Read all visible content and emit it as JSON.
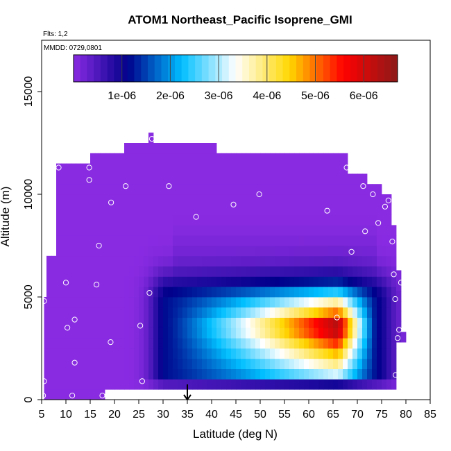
{
  "chart_data": {
    "type": "heatmap",
    "title": "ATOM1 Northeast_Pacific Isoprene_GMI",
    "notes": [
      "Flts: 1,2",
      "MMDD: 0729,0801"
    ],
    "xlabel": "Latitude (deg N)",
    "ylabel": "Altitude (m)",
    "xlim": [
      5,
      85
    ],
    "ylim": [
      0,
      17500
    ],
    "xticks": [
      5,
      10,
      15,
      20,
      25,
      30,
      35,
      40,
      45,
      50,
      55,
      60,
      65,
      70,
      75,
      80,
      85
    ],
    "yticks": [
      0,
      5000,
      10000,
      15000
    ],
    "colorbar": {
      "placement": "top-inside",
      "range": [
        0,
        6.7e-06
      ],
      "ticks": [
        1e-06,
        2e-06,
        3e-06,
        4e-06,
        5e-06,
        6e-06
      ],
      "tick_labels": [
        "1e-06",
        "2e-06",
        "3e-06",
        "4e-06",
        "5e-06",
        "6e-06"
      ],
      "colors": [
        "#8a2be2",
        "#00008b",
        "#00bfff",
        "#ffffff",
        "#ffd700",
        "#ff0000",
        "#8b1a1a"
      ]
    },
    "background_value": 1e-08,
    "coverage_ceiling": [
      {
        "x0": 5.5,
        "x1": 6.5,
        "top": 5000
      },
      {
        "x0": 6.5,
        "x1": 8,
        "top": 7000
      },
      {
        "x0": 8,
        "x1": 15,
        "top": 11500
      },
      {
        "x0": 15,
        "x1": 22,
        "top": 12000
      },
      {
        "x0": 22,
        "x1": 27,
        "top": 12500
      },
      {
        "x0": 27,
        "x1": 28,
        "top": 13000
      },
      {
        "x0": 28,
        "x1": 41,
        "top": 12500
      },
      {
        "x0": 41,
        "x1": 68,
        "top": 12000
      },
      {
        "x0": 68,
        "x1": 72,
        "top": 11000
      },
      {
        "x0": 72,
        "x1": 75,
        "top": 10500
      },
      {
        "x0": 75,
        "x1": 77,
        "top": 10000
      },
      {
        "x0": 77,
        "x1": 78,
        "top": 8500
      },
      {
        "x0": 78,
        "x1": 79,
        "top": 6000
      },
      {
        "x0": 79,
        "x1": 80,
        "top": 3000
      }
    ],
    "coverage_floor": [
      {
        "x0": 5.5,
        "x1": 18,
        "bottom": 0
      },
      {
        "x0": 18,
        "x1": 78.5,
        "bottom": 500
      },
      {
        "x0": 78.5,
        "x1": 80,
        "bottom": 2800
      }
    ],
    "plume": {
      "peak_value": 6.7e-06,
      "peak_lat": 66,
      "peak_alt": 3600,
      "core_lat_range": [
        31,
        73
      ],
      "core_alt_range": [
        1200,
        4800
      ]
    },
    "flight_points": [
      {
        "lat": 5.5,
        "alt": 4800
      },
      {
        "lat": 5.5,
        "alt": 900
      },
      {
        "lat": 5.3,
        "alt": 200
      },
      {
        "lat": 8.5,
        "alt": 11300
      },
      {
        "lat": 10,
        "alt": 5700
      },
      {
        "lat": 10.3,
        "alt": 3500
      },
      {
        "lat": 11.3,
        "alt": 200
      },
      {
        "lat": 11.8,
        "alt": 3900
      },
      {
        "lat": 11.8,
        "alt": 1800
      },
      {
        "lat": 14.8,
        "alt": 11300
      },
      {
        "lat": 14.8,
        "alt": 10700
      },
      {
        "lat": 16.3,
        "alt": 5600
      },
      {
        "lat": 16.8,
        "alt": 7500
      },
      {
        "lat": 17.5,
        "alt": 200
      },
      {
        "lat": 18.5,
        "alt": 200
      },
      {
        "lat": 19.3,
        "alt": 9600
      },
      {
        "lat": 19.2,
        "alt": 2800
      },
      {
        "lat": 22.3,
        "alt": 10400
      },
      {
        "lat": 25.3,
        "alt": 3600
      },
      {
        "lat": 25.7,
        "alt": 900
      },
      {
        "lat": 27.2,
        "alt": 5200
      },
      {
        "lat": 27.7,
        "alt": 12700
      },
      {
        "lat": 31.2,
        "alt": 10400
      },
      {
        "lat": 36.8,
        "alt": 8900
      },
      {
        "lat": 44.5,
        "alt": 9500
      },
      {
        "lat": 49.8,
        "alt": 10000
      },
      {
        "lat": 63.8,
        "alt": 9200
      },
      {
        "lat": 65.8,
        "alt": 4000
      },
      {
        "lat": 67.8,
        "alt": 11300
      },
      {
        "lat": 68.8,
        "alt": 7200
      },
      {
        "lat": 71.2,
        "alt": 10400
      },
      {
        "lat": 71.6,
        "alt": 8200
      },
      {
        "lat": 73.2,
        "alt": 10000
      },
      {
        "lat": 74.3,
        "alt": 8600
      },
      {
        "lat": 75.7,
        "alt": 9400
      },
      {
        "lat": 76.4,
        "alt": 9700
      },
      {
        "lat": 77.2,
        "alt": 7700
      },
      {
        "lat": 77.5,
        "alt": 6100
      },
      {
        "lat": 77.8,
        "alt": 4900
      },
      {
        "lat": 78.3,
        "alt": 3000
      },
      {
        "lat": 78.6,
        "alt": 3400
      },
      {
        "lat": 77.9,
        "alt": 1200
      },
      {
        "lat": 79,
        "alt": 5700
      }
    ],
    "arrow_marker": {
      "lat": 35,
      "alt": 0
    }
  }
}
